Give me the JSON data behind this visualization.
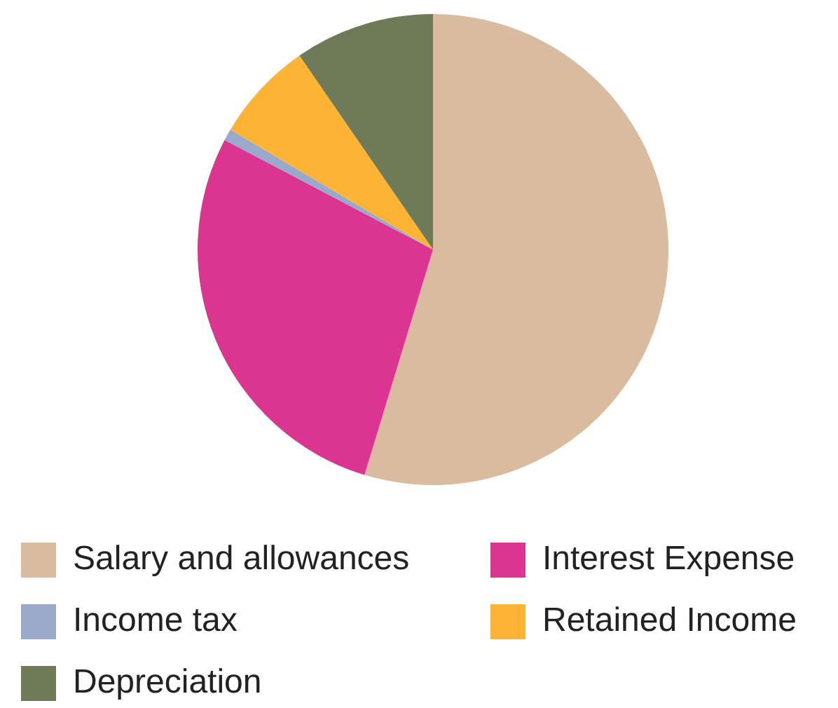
{
  "chart_data": {
    "type": "pie",
    "categories": [
      "Salary and allowances",
      "Interest Expense",
      "Income tax",
      "Retained Income",
      "Depreciation"
    ],
    "values": [
      54.7,
      28.0,
      0.8,
      6.9,
      9.6
    ],
    "colors": [
      "#d9bc9f",
      "#dc3591",
      "#9aa8cc",
      "#fdb334",
      "#6e7a58"
    ],
    "legend": "bottom"
  }
}
